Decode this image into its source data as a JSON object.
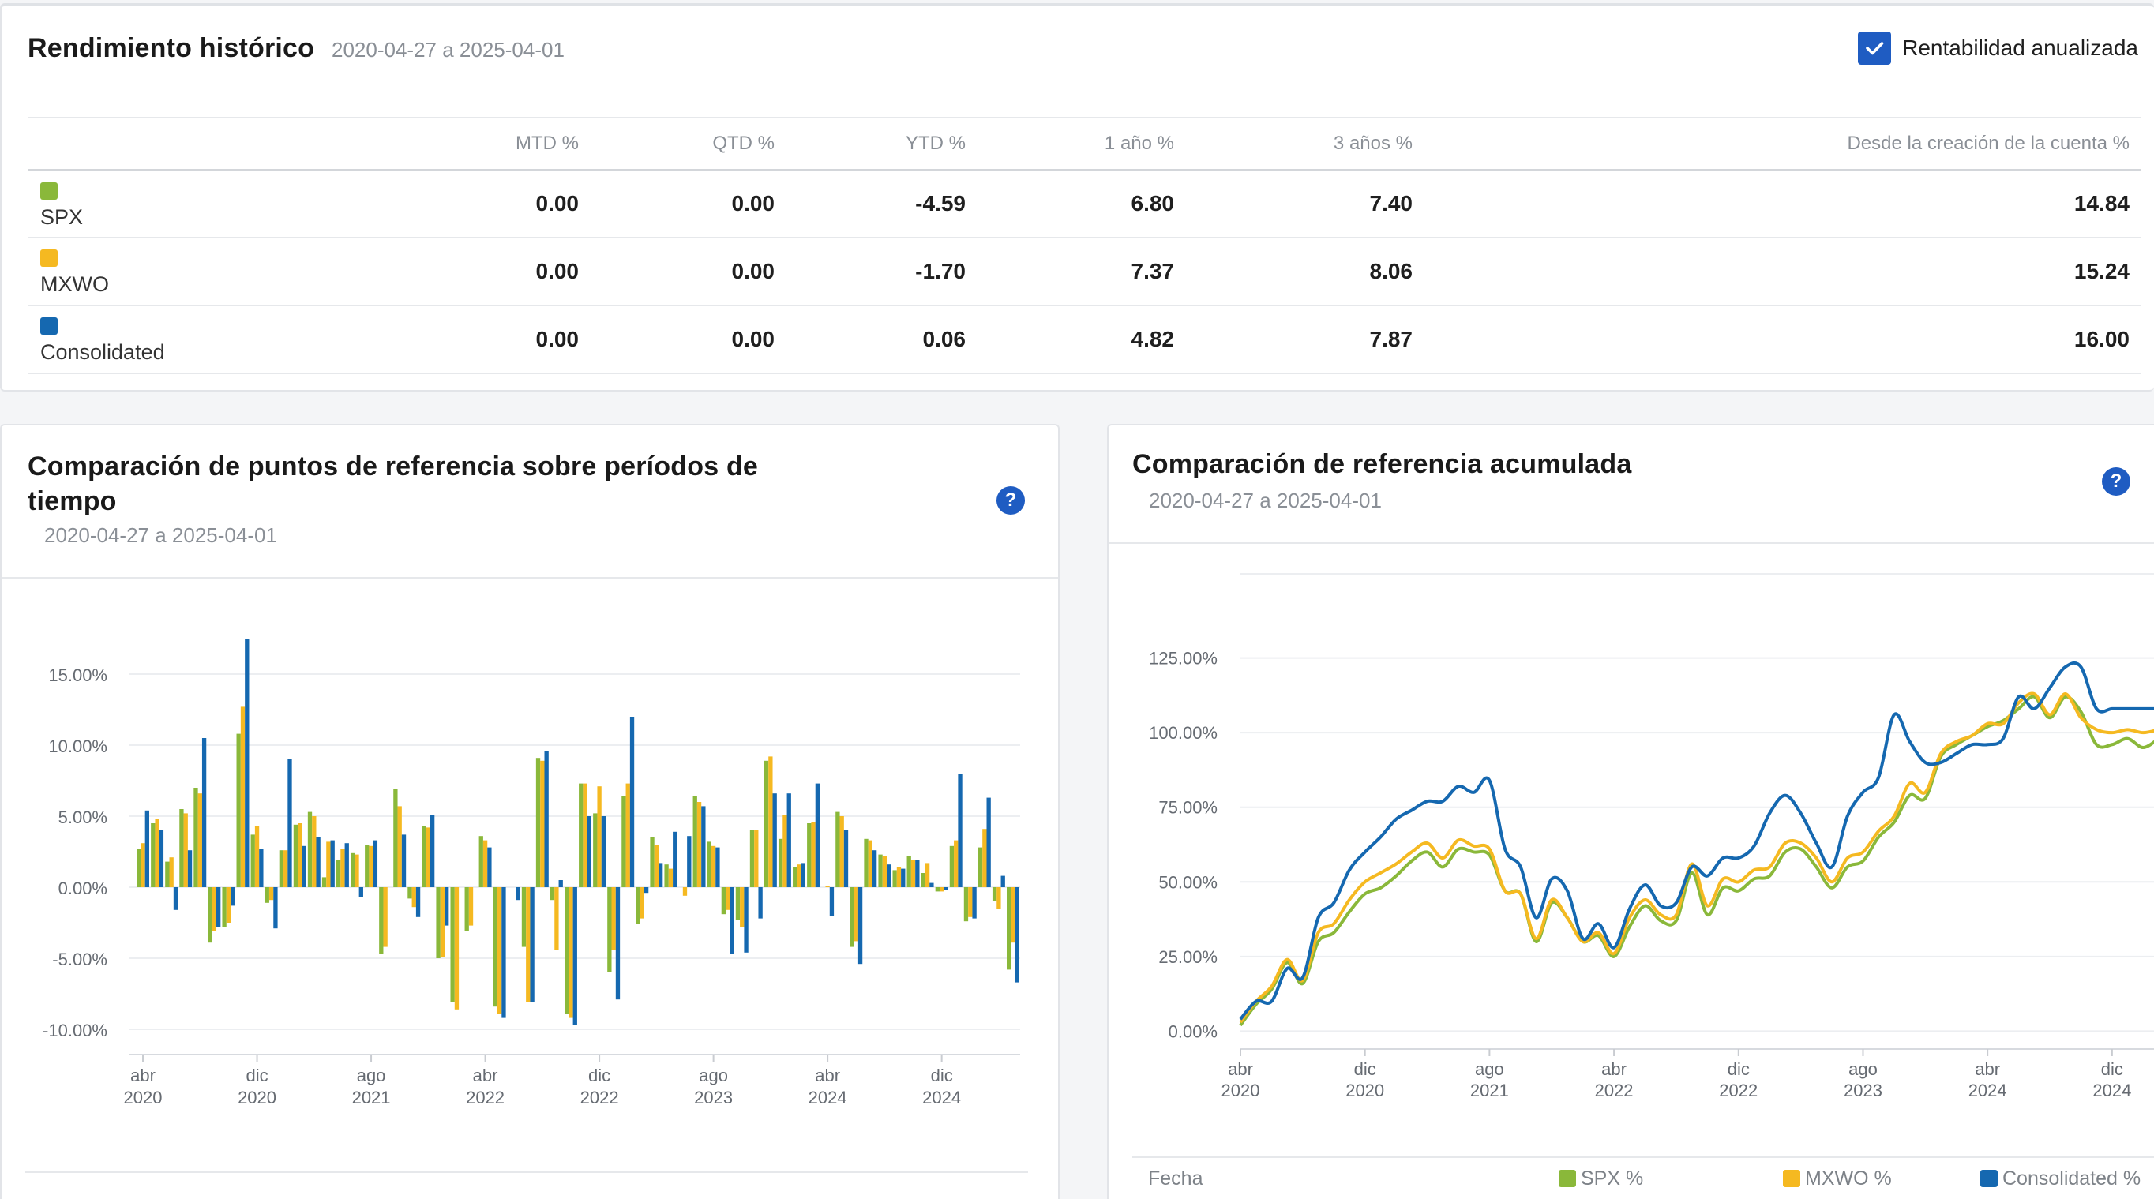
{
  "colors": {
    "spx": "#8ab83a",
    "mxwo": "#f5b921",
    "consolidated": "#1568b0",
    "accent": "#1f5cc2"
  },
  "historical": {
    "title": "Rendimiento histórico",
    "range": "2020-04-27 a 2025-04-01",
    "annualized_label": "Rentabilidad anualizada",
    "annualized_checked": true,
    "columns": [
      "MTD %",
      "QTD %",
      "YTD %",
      "1 año %",
      "3 años %",
      "Desde la creación de la cuenta %"
    ],
    "rows": [
      {
        "name": "SPX",
        "values": [
          "0.00",
          "0.00",
          "-4.59",
          "6.80",
          "7.40",
          "14.84"
        ]
      },
      {
        "name": "MXWO",
        "values": [
          "0.00",
          "0.00",
          "-1.70",
          "7.37",
          "8.06",
          "15.24"
        ]
      },
      {
        "name": "Consolidated",
        "values": [
          "0.00",
          "0.00",
          "0.06",
          "4.82",
          "7.87",
          "16.00"
        ]
      }
    ]
  },
  "bar_card": {
    "title": "Comparación de puntos de referencia sobre períodos de tiempo",
    "range": "2020-04-27 a 2025-04-01",
    "help": "?"
  },
  "cum_card": {
    "title": "Comparación de referencia acumulada",
    "range": "2020-04-27 a 2025-04-01",
    "help": "?",
    "legend": {
      "date_label": "Fecha",
      "spx": "SPX %",
      "mxwo": "MXWO %",
      "consolidated": "Consolidated %"
    }
  },
  "chart_data": [
    {
      "type": "bar",
      "series_names": [
        "SPX",
        "MXWO",
        "Consolidated"
      ],
      "ylim": [
        -10.5,
        19.5
      ],
      "yticks": [
        -10,
        -5,
        0,
        5,
        10,
        15
      ],
      "ytick_labels": [
        "-10.00%",
        "-5.00%",
        "0.00%",
        "5.00%",
        "10.00%",
        "15.00%"
      ],
      "xticks": [
        {
          "i": 0,
          "month": "abr",
          "year": "2020"
        },
        {
          "i": 8,
          "month": "dic",
          "year": "2020"
        },
        {
          "i": 16,
          "month": "ago",
          "year": "2021"
        },
        {
          "i": 24,
          "month": "abr",
          "year": "2022"
        },
        {
          "i": 32,
          "month": "dic",
          "year": "2022"
        },
        {
          "i": 40,
          "month": "ago",
          "year": "2023"
        },
        {
          "i": 48,
          "month": "abr",
          "year": "2024"
        },
        {
          "i": 56,
          "month": "dic",
          "year": "2024"
        }
      ],
      "months": 60,
      "values": [
        [
          2.7,
          3.1,
          5.4
        ],
        [
          4.5,
          4.8,
          4.0
        ],
        [
          1.8,
          2.1,
          -1.6
        ],
        [
          5.5,
          5.2,
          2.6
        ],
        [
          7.0,
          6.6,
          10.5
        ],
        [
          -3.9,
          -3.1,
          -2.8
        ],
        [
          -2.8,
          -2.5,
          -1.3
        ],
        [
          10.8,
          12.7,
          17.5
        ],
        [
          3.7,
          4.3,
          2.7
        ],
        [
          -1.1,
          -0.9,
          -2.9
        ],
        [
          2.6,
          2.6,
          9.0
        ],
        [
          4.4,
          4.5,
          2.9
        ],
        [
          5.3,
          5.0,
          3.5
        ],
        [
          0.7,
          3.2,
          3.3
        ],
        [
          1.9,
          2.7,
          3.1
        ],
        [
          2.4,
          2.3,
          -0.7
        ],
        [
          3.0,
          2.9,
          3.3
        ],
        [
          -4.7,
          -4.2,
          0.0
        ],
        [
          6.9,
          5.7,
          3.7
        ],
        [
          -0.8,
          -1.4,
          -2.1
        ],
        [
          4.3,
          4.2,
          5.1
        ],
        [
          -5.0,
          -4.9,
          -2.7
        ],
        [
          -8.1,
          -8.6,
          0.0
        ],
        [
          -3.1,
          -2.7,
          0.0
        ],
        [
          3.6,
          3.3,
          2.8
        ],
        [
          -8.4,
          -8.9,
          -9.2
        ],
        [
          0.0,
          0.0,
          -0.9
        ],
        [
          -4.2,
          -8.1,
          -8.1
        ],
        [
          9.1,
          8.9,
          9.6
        ],
        [
          -0.9,
          -4.4,
          0.5
        ],
        [
          -8.9,
          -9.2,
          -9.7
        ],
        [
          7.3,
          7.3,
          5.0
        ],
        [
          5.2,
          7.1,
          5.0
        ],
        [
          -6.0,
          -4.4,
          -7.9
        ],
        [
          6.4,
          7.3,
          12.0
        ],
        [
          -2.6,
          -2.2,
          -0.4
        ],
        [
          3.5,
          3.0,
          1.7
        ],
        [
          1.6,
          1.3,
          3.9
        ],
        [
          0.0,
          -0.6,
          3.6
        ],
        [
          6.4,
          6.0,
          5.7
        ],
        [
          3.2,
          2.9,
          2.8
        ],
        [
          -1.9,
          -1.6,
          -4.7
        ],
        [
          -2.3,
          -2.8,
          -4.6
        ],
        [
          4.0,
          4.0,
          -2.2
        ],
        [
          8.9,
          9.2,
          6.6
        ],
        [
          3.4,
          5.1,
          6.6
        ],
        [
          1.4,
          1.6,
          1.7
        ],
        [
          4.5,
          4.6,
          7.3
        ],
        [
          0.0,
          0.1,
          -2.0
        ],
        [
          5.3,
          5.0,
          4.0
        ],
        [
          -4.2,
          -3.8,
          -5.4
        ],
        [
          3.4,
          3.3,
          2.6
        ],
        [
          2.3,
          2.2,
          1.6
        ],
        [
          1.2,
          1.4,
          1.3
        ],
        [
          2.2,
          1.9,
          1.9
        ],
        [
          1.0,
          1.7,
          0.3
        ],
        [
          -0.3,
          -0.3,
          -0.2
        ],
        [
          2.9,
          3.3,
          8.0
        ],
        [
          -2.4,
          -2.1,
          -2.2
        ],
        [
          2.8,
          4.1,
          6.3
        ]
      ],
      "tail_values": [
        [
          -1.0,
          -1.5,
          0.8
        ],
        [
          -5.8,
          -3.9,
          -6.7
        ]
      ]
    },
    {
      "type": "line",
      "series_names": [
        "SPX %",
        "MXWO %",
        "Consolidated %"
      ],
      "ylim": [
        -2,
        150
      ],
      "yticks": [
        0,
        25,
        50,
        75,
        100,
        125
      ],
      "ytick_labels": [
        "0.00%",
        "25.00%",
        "50.00%",
        "75.00%",
        "100.00%",
        "125.00%"
      ],
      "xticks": [
        {
          "i": 0,
          "month": "abr",
          "year": "2020"
        },
        {
          "i": 8,
          "month": "dic",
          "year": "2020"
        },
        {
          "i": 16,
          "month": "ago",
          "year": "2021"
        },
        {
          "i": 24,
          "month": "abr",
          "year": "2022"
        },
        {
          "i": 32,
          "month": "dic",
          "year": "2022"
        },
        {
          "i": 40,
          "month": "ago",
          "year": "2023"
        },
        {
          "i": 48,
          "month": "abr",
          "year": "2024"
        },
        {
          "i": 56,
          "month": "dic",
          "year": "2024"
        }
      ],
      "x": [
        0,
        1,
        2,
        3,
        4,
        5,
        6,
        7,
        8,
        9,
        10,
        11,
        12,
        13,
        14,
        15,
        16,
        17,
        18,
        19,
        20,
        21,
        22,
        23,
        24,
        25,
        26,
        27,
        28,
        29,
        30,
        31,
        32,
        33,
        34,
        35,
        36,
        37,
        38,
        39,
        40,
        41,
        42,
        43,
        44,
        45,
        46,
        47,
        48,
        49,
        50,
        51,
        52,
        53,
        54,
        55,
        56,
        57,
        58,
        59
      ],
      "series": [
        {
          "name": "SPX %",
          "values": [
            2,
            9,
            14,
            23,
            16,
            30,
            33,
            40,
            46,
            48,
            52,
            57,
            60,
            55,
            61,
            60,
            59,
            47,
            46,
            30,
            43,
            38,
            30,
            32,
            25,
            35,
            42,
            37,
            37,
            53,
            39,
            48,
            47,
            51,
            52,
            60,
            61,
            55,
            48,
            55,
            57,
            65,
            70,
            79,
            78,
            92,
            96,
            99,
            102,
            104,
            108,
            112,
            105,
            112,
            107,
            96,
            96,
            98,
            95,
            98
          ]
        },
        {
          "name": "MXWO %",
          "values": [
            3,
            10,
            15,
            24,
            17,
            33,
            36,
            44,
            50,
            53,
            56,
            60,
            63,
            58,
            64,
            62,
            61,
            47,
            46,
            31,
            44,
            38,
            30,
            33,
            26,
            38,
            44,
            39,
            39,
            56,
            42,
            51,
            50,
            54,
            55,
            63,
            63,
            58,
            50,
            58,
            60,
            67,
            72,
            83,
            80,
            93,
            97,
            99,
            103,
            103,
            110,
            113,
            106,
            113,
            105,
            101,
            100,
            101,
            100,
            101
          ]
        },
        {
          "name": "Consolidated %",
          "values": [
            4,
            10,
            10,
            21,
            18,
            38,
            43,
            54,
            60,
            65,
            71,
            74,
            77,
            77,
            82,
            80,
            84,
            61,
            55,
            38,
            51,
            47,
            31,
            36,
            28,
            41,
            49,
            42,
            43,
            55,
            52,
            58,
            58,
            62,
            73,
            79,
            73,
            63,
            55,
            72,
            80,
            85,
            106,
            97,
            90,
            90,
            93,
            96,
            96,
            98,
            112,
            108,
            115,
            122,
            122,
            108,
            108,
            108,
            108,
            108
          ]
        }
      ]
    }
  ]
}
